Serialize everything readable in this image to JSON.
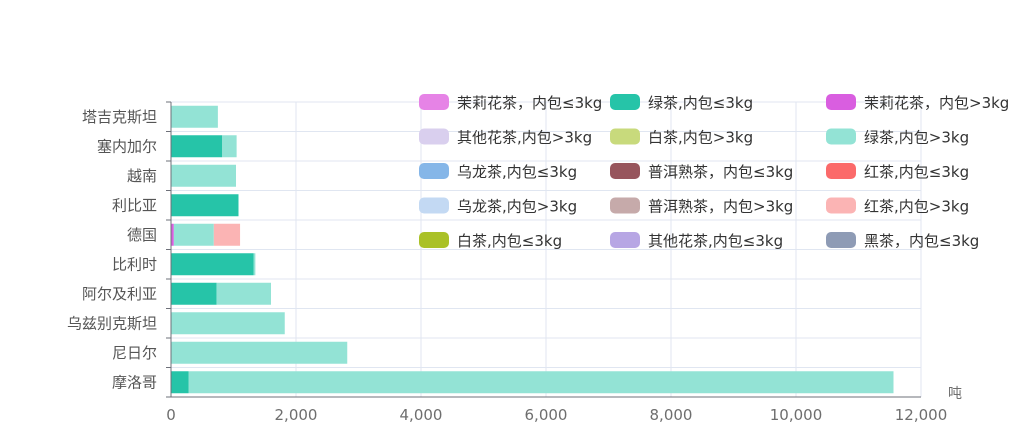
{
  "chart_data": {
    "type": "bar",
    "orientation": "horizontal",
    "stacked": true,
    "x_unit": "吨",
    "xlim": [
      0,
      12000
    ],
    "x_ticks": [
      0,
      2000,
      4000,
      6000,
      8000,
      10000,
      12000
    ],
    "x_tick_labels": [
      "0",
      "2,000",
      "4,000",
      "6,000",
      "8,000",
      "10,000",
      "12,000"
    ],
    "categories": [
      "摩洛哥",
      "尼日尔",
      "乌兹别克斯坦",
      "阿尔及利亚",
      "比利时",
      "德国",
      "利比亚",
      "越南",
      "塞内加尔",
      "塔吉克斯坦"
    ],
    "grid": true,
    "series": [
      {
        "name": "茉莉花茶，内包≤3kg",
        "color": "#e683e6",
        "values": [
          0,
          0,
          0,
          0,
          0,
          0,
          0,
          0,
          0,
          0
        ]
      },
      {
        "name": "绿茶,内包≤3kg",
        "color": "#26c4a8",
        "values": [
          280,
          0,
          0,
          730,
          1320,
          0,
          1080,
          0,
          820,
          0
        ]
      },
      {
        "name": "茉莉花茶，内包>3kg",
        "color": "#d95ee0",
        "values": [
          0,
          0,
          0,
          0,
          0,
          45,
          0,
          0,
          0,
          0
        ]
      },
      {
        "name": "其他花茶,内包>3kg",
        "color": "#d9cfee",
        "values": [
          0,
          0,
          0,
          0,
          0,
          0,
          0,
          0,
          0,
          0
        ]
      },
      {
        "name": "白茶,内包>3kg",
        "color": "#c8da7c",
        "values": [
          0,
          0,
          0,
          0,
          0,
          0,
          0,
          0,
          0,
          0
        ]
      },
      {
        "name": "绿茶,内包>3kg",
        "color": "#93e3d5",
        "values": [
          11280,
          2820,
          1820,
          870,
          30,
          640,
          0,
          1040,
          230,
          750
        ]
      },
      {
        "name": "乌龙茶,内包≤3kg",
        "color": "#85b6e8",
        "values": [
          0,
          0,
          0,
          0,
          0,
          0,
          0,
          0,
          0,
          0
        ]
      },
      {
        "name": "普洱熟茶，内包≤3kg",
        "color": "#97555d",
        "values": [
          0,
          0,
          0,
          0,
          0,
          0,
          0,
          0,
          0,
          0
        ]
      },
      {
        "name": "红茶,内包≤3kg",
        "color": "#fb6a6a",
        "values": [
          0,
          0,
          0,
          0,
          0,
          0,
          0,
          0,
          0,
          0
        ]
      },
      {
        "name": "乌龙茶,内包>3kg",
        "color": "#c3d9f3",
        "values": [
          0,
          0,
          0,
          0,
          0,
          0,
          0,
          0,
          0,
          0
        ]
      },
      {
        "name": "普洱熟茶，内包>3kg",
        "color": "#c6aaaa",
        "values": [
          0,
          0,
          0,
          0,
          0,
          0,
          0,
          0,
          0,
          0
        ]
      },
      {
        "name": "红茶,内包>3kg",
        "color": "#fbb4b4",
        "values": [
          0,
          0,
          0,
          0,
          0,
          420,
          0,
          0,
          0,
          0
        ]
      },
      {
        "name": "白茶,内包≤3kg",
        "color": "#aac127",
        "values": [
          0,
          0,
          0,
          0,
          0,
          0,
          0,
          0,
          0,
          0
        ]
      },
      {
        "name": "其他花茶,内包≤3kg",
        "color": "#b7a6e4",
        "values": [
          0,
          0,
          0,
          0,
          0,
          0,
          0,
          0,
          0,
          0
        ]
      },
      {
        "name": "黑茶，内包≤3kg",
        "color": "#8e9bb5",
        "values": [
          0,
          0,
          0,
          0,
          0,
          0,
          0,
          0,
          0,
          0
        ]
      }
    ]
  }
}
